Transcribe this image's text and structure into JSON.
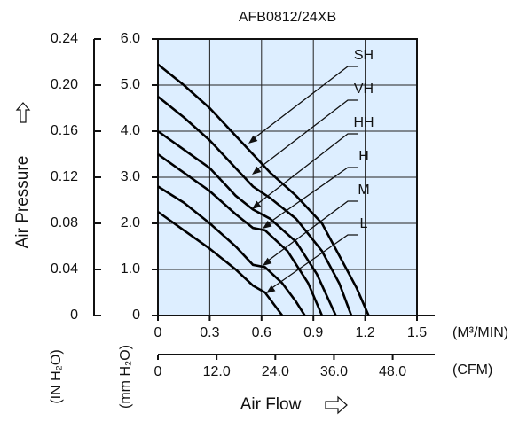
{
  "chart_data": {
    "type": "line",
    "title": "AFB0812/24XB",
    "y_label": "Air Pressure",
    "y2_unit": "(IN H₂O)",
    "y_unit": "(mm H₂O)",
    "x_label": "Air Flow",
    "x_unit": "(M³/MIN)",
    "x2_unit": "(CFM)",
    "ylim": [
      0,
      6
    ],
    "yticks": [
      0,
      {
        "value": 1,
        "label": "1.0"
      },
      {
        "value": 2,
        "label": "2.0"
      },
      {
        "value": 3,
        "label": "3.0"
      },
      {
        "value": 4,
        "label": "4.0"
      },
      {
        "value": 5,
        "label": "5.0"
      },
      {
        "value": 6,
        "label": "6.0"
      }
    ],
    "y2lim": [
      0,
      0.24
    ],
    "y2ticks": [
      0,
      0.04,
      0.08,
      0.12,
      0.16,
      {
        "value": 0.2,
        "label": "0.20"
      },
      0.24
    ],
    "xlim": [
      0,
      1.5
    ],
    "xticks": [
      0,
      0.3,
      0.6,
      0.9,
      1.2,
      1.5
    ],
    "x2lim": [
      0,
      52.97
    ],
    "x2ticks": [
      0,
      {
        "value": 12,
        "label": "12.0"
      },
      {
        "value": 24,
        "label": "24.0"
      },
      {
        "value": 36,
        "label": "36.0"
      },
      {
        "value": 48,
        "label": "48.0"
      }
    ],
    "grid": true,
    "background": "#ddeeff",
    "series": [
      {
        "name": "SH",
        "color": "#000000",
        "x": [
          0,
          0.15,
          0.3,
          0.45,
          0.55,
          0.65,
          0.8,
          0.95,
          1.05,
          1.15,
          1.22
        ],
        "values": [
          5.45,
          5.0,
          4.5,
          3.9,
          3.5,
          3.1,
          2.6,
          2.0,
          1.3,
          0.6,
          0
        ]
      },
      {
        "name": "VH",
        "color": "#000000",
        "x": [
          0,
          0.15,
          0.3,
          0.45,
          0.55,
          0.65,
          0.8,
          0.95,
          1.05,
          1.12
        ],
        "values": [
          4.75,
          4.3,
          3.8,
          3.2,
          2.8,
          2.55,
          2.1,
          1.4,
          0.7,
          0
        ]
      },
      {
        "name": "HH",
        "color": "#000000",
        "x": [
          0,
          0.15,
          0.3,
          0.45,
          0.55,
          0.65,
          0.8,
          0.92,
          1.03
        ],
        "values": [
          4.0,
          3.6,
          3.2,
          2.6,
          2.3,
          2.1,
          1.6,
          0.9,
          0
        ]
      },
      {
        "name": "H",
        "color": "#000000",
        "x": [
          0,
          0.15,
          0.3,
          0.45,
          0.55,
          0.62,
          0.75,
          0.87,
          0.95
        ],
        "values": [
          3.5,
          3.1,
          2.7,
          2.2,
          1.9,
          1.85,
          1.4,
          0.7,
          0
        ]
      },
      {
        "name": "M",
        "color": "#000000",
        "x": [
          0,
          0.15,
          0.3,
          0.45,
          0.55,
          0.62,
          0.72,
          0.8,
          0.85
        ],
        "values": [
          2.8,
          2.45,
          2.0,
          1.5,
          1.1,
          1.05,
          0.7,
          0.3,
          0
        ]
      },
      {
        "name": "L",
        "color": "#000000",
        "x": [
          0,
          0.15,
          0.3,
          0.45,
          0.55,
          0.62,
          0.68,
          0.72
        ],
        "values": [
          2.25,
          1.85,
          1.45,
          1.0,
          0.65,
          0.5,
          0.2,
          0
        ]
      }
    ]
  }
}
